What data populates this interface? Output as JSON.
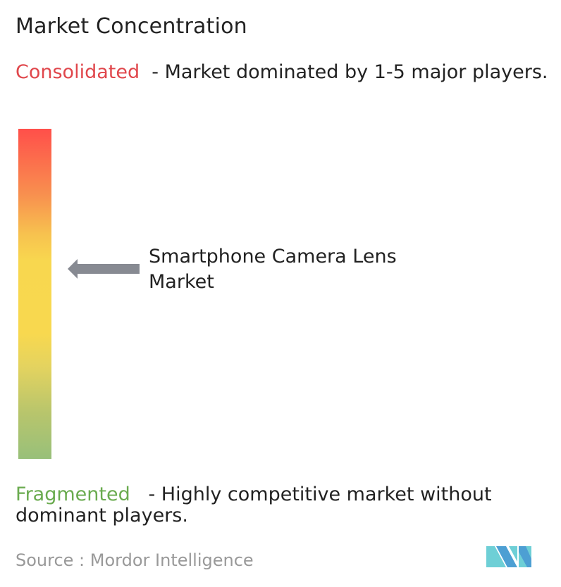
{
  "title": "Market Concentration",
  "consolidated": {
    "label": "Consolidated",
    "text": "  - Market dominated by 1-5 major players.",
    "color": "#e0474c"
  },
  "fragmented": {
    "label": "Fragmented",
    "text": "   - Highly competitive market without dominant players.",
    "color": "#6aab4f"
  },
  "market_label": "Smartphone Camera Lens Market",
  "source": "Source :  Mordor Intelligence",
  "logo_text": "Mordor Intelligence",
  "arrow_color": "#878a92"
}
